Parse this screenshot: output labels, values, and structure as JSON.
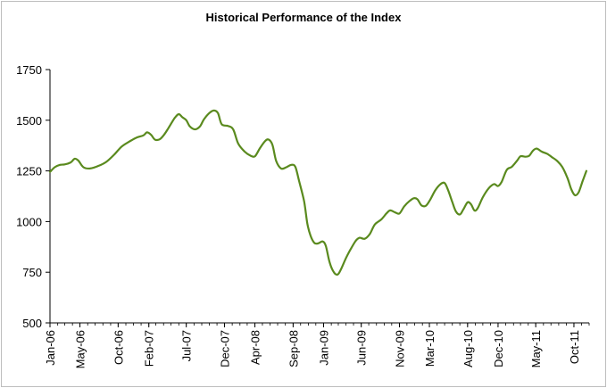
{
  "chart_data": {
    "type": "line",
    "title": "Historical Performance of the Index",
    "xlabel": "",
    "ylabel": "",
    "ylim": [
      500,
      1750
    ],
    "yticks": [
      500,
      750,
      1000,
      1250,
      1500,
      1750
    ],
    "xticks": [
      "Jan-06",
      "May-06",
      "Oct-06",
      "Feb-07",
      "Jul-07",
      "Dec-07",
      "Apr-08",
      "Sep-08",
      "Jan-09",
      "Jun-09",
      "Nov-09",
      "Mar-10",
      "Aug-10",
      "Dec-10",
      "May-11",
      "Oct-11"
    ],
    "xlim": [
      "2006-01-01",
      "2011-12-01"
    ],
    "grid": false,
    "line_color": "#5a8a1e",
    "series": [
      {
        "points": [
          [
            "2006-01-01",
            1245
          ],
          [
            "2006-01-20",
            1268
          ],
          [
            "2006-02-10",
            1280
          ],
          [
            "2006-03-01",
            1282
          ],
          [
            "2006-03-25",
            1292
          ],
          [
            "2006-04-10",
            1310
          ],
          [
            "2006-04-25",
            1300
          ],
          [
            "2006-05-15",
            1268
          ],
          [
            "2006-06-10",
            1262
          ],
          [
            "2006-07-15",
            1275
          ],
          [
            "2006-08-15",
            1295
          ],
          [
            "2006-09-15",
            1330
          ],
          [
            "2006-10-15",
            1370
          ],
          [
            "2006-11-15",
            1395
          ],
          [
            "2006-12-15",
            1415
          ],
          [
            "2007-01-10",
            1425
          ],
          [
            "2007-01-25",
            1440
          ],
          [
            "2007-02-10",
            1428
          ],
          [
            "2007-02-25",
            1405
          ],
          [
            "2007-03-15",
            1405
          ],
          [
            "2007-04-01",
            1425
          ],
          [
            "2007-04-20",
            1460
          ],
          [
            "2007-05-15",
            1510
          ],
          [
            "2007-06-01",
            1530
          ],
          [
            "2007-06-15",
            1515
          ],
          [
            "2007-07-01",
            1500
          ],
          [
            "2007-07-15",
            1470
          ],
          [
            "2007-08-05",
            1455
          ],
          [
            "2007-08-25",
            1470
          ],
          [
            "2007-09-10",
            1505
          ],
          [
            "2007-10-01",
            1535
          ],
          [
            "2007-10-20",
            1548
          ],
          [
            "2007-11-05",
            1535
          ],
          [
            "2007-11-20",
            1480
          ],
          [
            "2007-12-15",
            1472
          ],
          [
            "2008-01-05",
            1455
          ],
          [
            "2008-01-25",
            1385
          ],
          [
            "2008-02-20",
            1345
          ],
          [
            "2008-03-15",
            1325
          ],
          [
            "2008-04-01",
            1322
          ],
          [
            "2008-04-20",
            1360
          ],
          [
            "2008-05-10",
            1395
          ],
          [
            "2008-05-25",
            1405
          ],
          [
            "2008-06-10",
            1380
          ],
          [
            "2008-06-25",
            1300
          ],
          [
            "2008-07-15",
            1262
          ],
          [
            "2008-08-05",
            1268
          ],
          [
            "2008-08-25",
            1280
          ],
          [
            "2008-09-10",
            1270
          ],
          [
            "2008-09-25",
            1200
          ],
          [
            "2008-10-15",
            1100
          ],
          [
            "2008-10-28",
            990
          ],
          [
            "2008-11-10",
            930
          ],
          [
            "2008-11-25",
            895
          ],
          [
            "2008-12-10",
            892
          ],
          [
            "2008-12-28",
            902
          ],
          [
            "2009-01-10",
            880
          ],
          [
            "2009-01-25",
            800
          ],
          [
            "2009-02-10",
            752
          ],
          [
            "2009-02-25",
            738
          ],
          [
            "2009-03-10",
            760
          ],
          [
            "2009-04-01",
            820
          ],
          [
            "2009-04-20",
            865
          ],
          [
            "2009-05-10",
            905
          ],
          [
            "2009-05-25",
            920
          ],
          [
            "2009-06-15",
            915
          ],
          [
            "2009-07-05",
            938
          ],
          [
            "2009-07-25",
            985
          ],
          [
            "2009-08-20",
            1010
          ],
          [
            "2009-09-10",
            1040
          ],
          [
            "2009-09-25",
            1055
          ],
          [
            "2009-10-15",
            1045
          ],
          [
            "2009-11-01",
            1040
          ],
          [
            "2009-11-20",
            1075
          ],
          [
            "2009-12-10",
            1100
          ],
          [
            "2009-12-28",
            1115
          ],
          [
            "2010-01-12",
            1110
          ],
          [
            "2010-01-28",
            1080
          ],
          [
            "2010-02-15",
            1078
          ],
          [
            "2010-03-05",
            1110
          ],
          [
            "2010-03-25",
            1155
          ],
          [
            "2010-04-15",
            1185
          ],
          [
            "2010-05-01",
            1190
          ],
          [
            "2010-05-15",
            1155
          ],
          [
            "2010-06-01",
            1095
          ],
          [
            "2010-06-15",
            1050
          ],
          [
            "2010-07-01",
            1035
          ],
          [
            "2010-07-15",
            1060
          ],
          [
            "2010-08-01",
            1095
          ],
          [
            "2010-08-15",
            1085
          ],
          [
            "2010-08-28",
            1055
          ],
          [
            "2010-09-10",
            1065
          ],
          [
            "2010-10-01",
            1120
          ],
          [
            "2010-10-25",
            1165
          ],
          [
            "2010-11-15",
            1185
          ],
          [
            "2010-12-01",
            1175
          ],
          [
            "2010-12-15",
            1195
          ],
          [
            "2011-01-05",
            1255
          ],
          [
            "2011-01-25",
            1270
          ],
          [
            "2011-02-15",
            1300
          ],
          [
            "2011-03-01",
            1322
          ],
          [
            "2011-03-20",
            1320
          ],
          [
            "2011-04-05",
            1325
          ],
          [
            "2011-04-20",
            1350
          ],
          [
            "2011-05-05",
            1360
          ],
          [
            "2011-05-25",
            1345
          ],
          [
            "2011-06-15",
            1335
          ],
          [
            "2011-07-05",
            1318
          ],
          [
            "2011-07-25",
            1300
          ],
          [
            "2011-08-15",
            1270
          ],
          [
            "2011-09-05",
            1215
          ],
          [
            "2011-09-20",
            1160
          ],
          [
            "2011-10-05",
            1130
          ],
          [
            "2011-10-20",
            1145
          ],
          [
            "2011-11-05",
            1200
          ],
          [
            "2011-11-20",
            1250
          ]
        ]
      }
    ]
  }
}
